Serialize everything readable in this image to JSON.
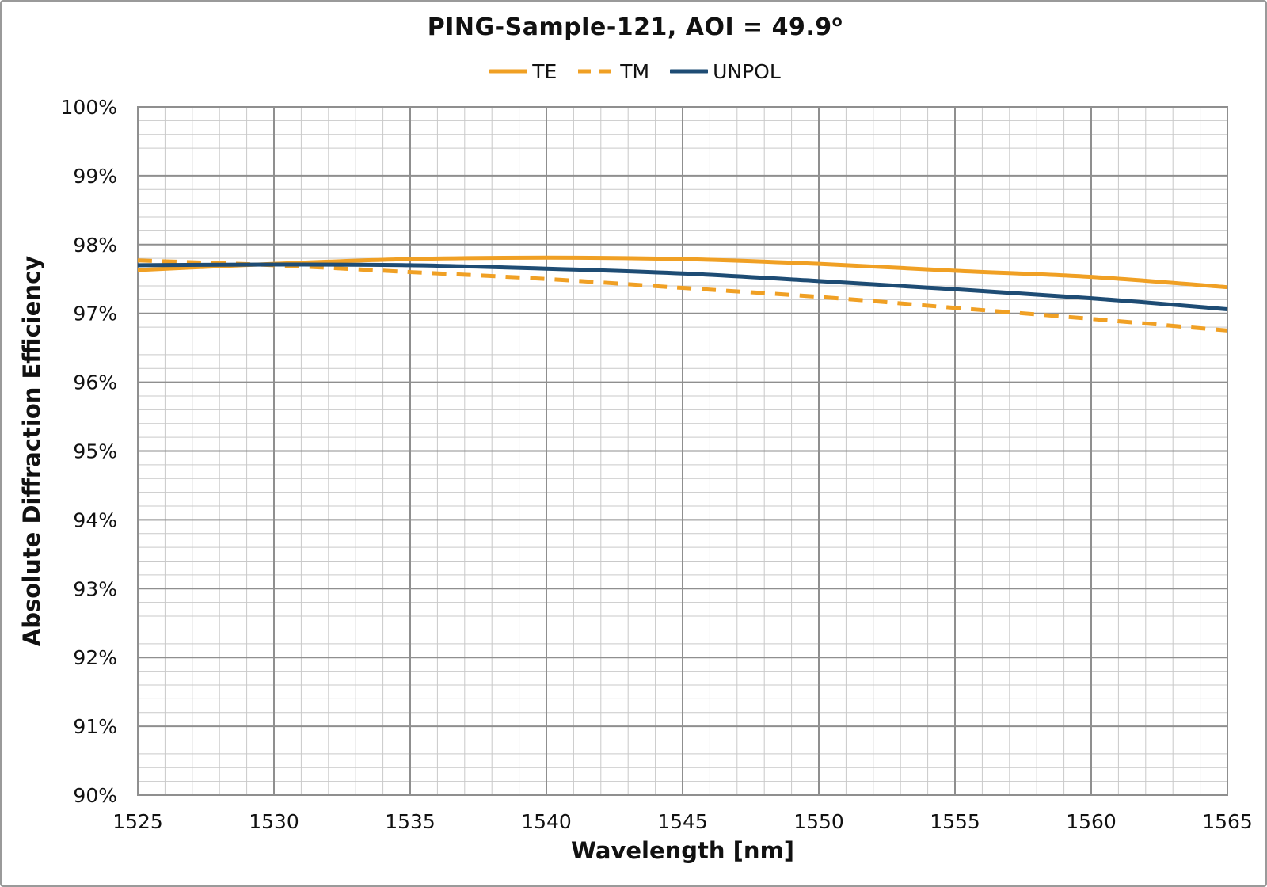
{
  "page": {
    "background": "#ffffff",
    "border_color": "#9a9a9a"
  },
  "chart_data": {
    "type": "line",
    "title": "PING-Sample-121, AOI = 49.9",
    "title_superscript": "o",
    "xlabel": "Wavelength [nm]",
    "ylabel": "Absolute Diffraction Efficiency",
    "xlim": [
      1525,
      1565
    ],
    "ylim": [
      90,
      100
    ],
    "x_major_step": 5,
    "x_minor_step": 1,
    "y_major_step": 1,
    "y_minor_step": 0.2,
    "x_tick_labels": [
      "1525",
      "1530",
      "1535",
      "1540",
      "1545",
      "1550",
      "1555",
      "1560",
      "1565"
    ],
    "y_tick_labels": [
      "100%",
      "99%",
      "98%",
      "97%",
      "96%",
      "95%",
      "94%",
      "93%",
      "92%",
      "91%",
      "90%"
    ],
    "grid": "major+minor",
    "grid_minor_color": "#c9c9c9",
    "grid_major_color": "#8f8f8f",
    "legend_position": "top-center",
    "x": [
      1525,
      1530,
      1535,
      1540,
      1545,
      1550,
      1555,
      1560,
      1565
    ],
    "series": [
      {
        "name": "TE",
        "color": "#F0A024",
        "style": "solid",
        "values": [
          97.63,
          97.72,
          97.79,
          97.81,
          97.79,
          97.72,
          97.62,
          97.53,
          97.38
        ]
      },
      {
        "name": "TM",
        "color": "#F0A024",
        "style": "dashed",
        "values": [
          97.77,
          97.7,
          97.6,
          97.5,
          97.37,
          97.24,
          97.08,
          96.92,
          96.75
        ]
      },
      {
        "name": "UNPOL",
        "color": "#1E4C74",
        "style": "solid",
        "values": [
          97.7,
          97.71,
          97.7,
          97.65,
          97.58,
          97.47,
          97.35,
          97.22,
          97.06
        ]
      }
    ]
  }
}
